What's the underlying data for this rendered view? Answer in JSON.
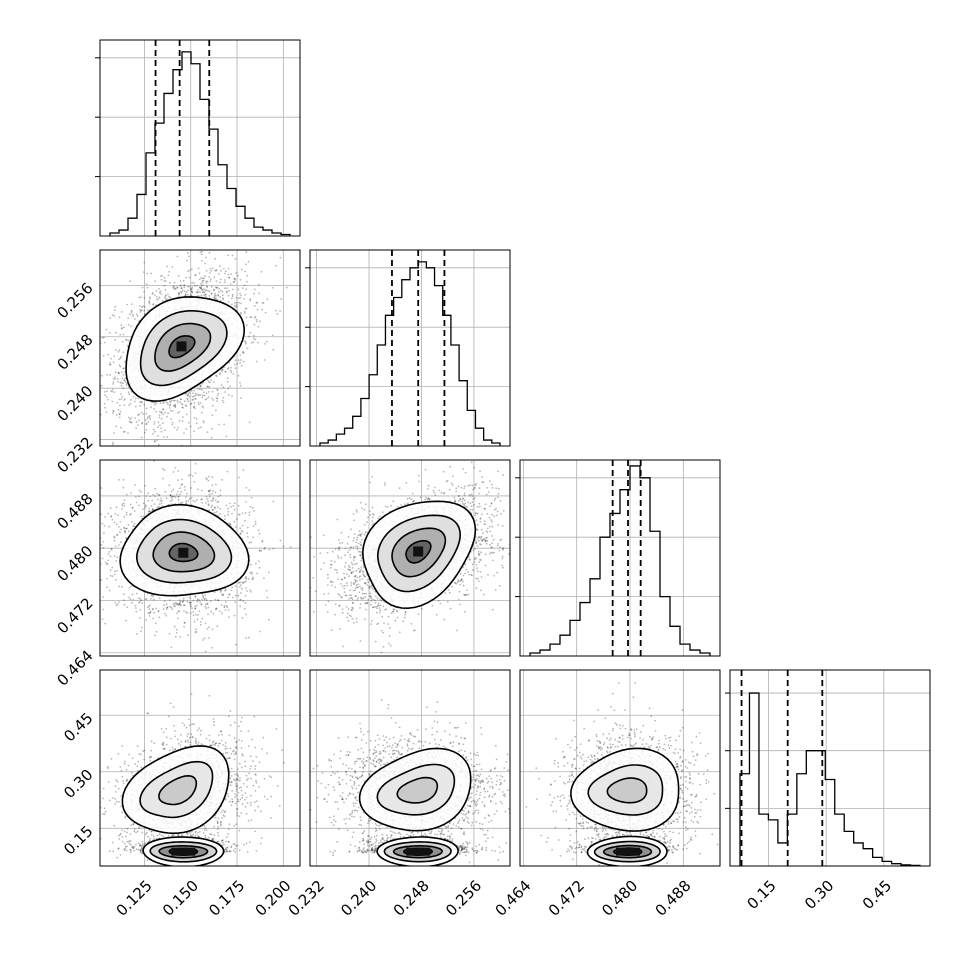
{
  "chart_data": {
    "type": "scatter",
    "parameters": [
      {
        "ticks": [
          0.125,
          0.15,
          0.175,
          0.2
        ],
        "tick_labels": [
          "0.125",
          "0.150",
          "0.175",
          "0.200"
        ],
        "range": [
          0.101,
          0.209
        ],
        "quantiles": [
          0.131,
          0.144,
          0.16
        ]
      },
      {
        "ticks": [
          0.232,
          0.24,
          0.248,
          0.256
        ],
        "tick_labels": [
          "0.232",
          "0.240",
          "0.248",
          "0.256"
        ],
        "range": [
          0.231,
          0.2615
        ],
        "quantiles": [
          0.2435,
          0.2475,
          0.2515
        ]
      },
      {
        "ticks": [
          0.464,
          0.472,
          0.48,
          0.488
        ],
        "tick_labels": [
          "0.464",
          "0.472",
          "0.480",
          "0.488"
        ],
        "range": [
          0.4635,
          0.4935
        ],
        "quantiles": [
          0.4774,
          0.4797,
          0.4816
        ]
      },
      {
        "ticks": [
          0.15,
          0.3,
          0.45
        ],
        "tick_labels": [
          "0.15",
          "0.30",
          "0.45"
        ],
        "range": [
          0.05,
          0.57
        ],
        "quantiles": [
          0.08,
          0.2,
          0.29
        ]
      }
    ],
    "histograms": [
      {
        "counts": [
          1,
          2,
          6,
          14,
          28,
          38,
          48,
          56,
          62,
          58,
          46,
          36,
          24,
          16,
          10,
          6,
          3,
          2,
          1,
          0.5
        ],
        "ylim": [
          0,
          66
        ]
      },
      {
        "counts": [
          1,
          2,
          4,
          6,
          10,
          16,
          24,
          34,
          44,
          50,
          56,
          60,
          62,
          60,
          54,
          44,
          34,
          22,
          12,
          6,
          2,
          1
        ],
        "ylim": [
          0,
          66
        ]
      },
      {
        "counts": [
          1,
          2,
          4,
          7,
          12,
          18,
          26,
          40,
          48,
          56,
          64,
          60,
          42,
          20,
          10,
          4,
          2,
          1
        ],
        "ylim": [
          0,
          66
        ]
      },
      {
        "counts": [
          16,
          30,
          9,
          8,
          4,
          9,
          16,
          20,
          20,
          15,
          9,
          6,
          4,
          3,
          1.5,
          0.8,
          0.4,
          0.2,
          0.1
        ],
        "ylim": [
          0,
          34
        ]
      }
    ],
    "pairs": [
      {
        "x": 0,
        "y": 1,
        "mean": [
          0.145,
          0.2465
        ],
        "sd": [
          0.0142,
          0.0048
        ],
        "rho": 0.35,
        "peak_level": "high"
      },
      {
        "x": 0,
        "y": 2,
        "mean": [
          0.146,
          0.4793
        ],
        "sd": [
          0.0142,
          0.0037
        ],
        "rho": -0.05,
        "peak_level": "high"
      },
      {
        "x": 1,
        "y": 2,
        "mean": [
          0.2475,
          0.4795
        ],
        "sd": [
          0.0048,
          0.0037
        ],
        "rho": 0.45,
        "peak_level": "high"
      },
      {
        "x": 0,
        "y": 3,
        "mean": [
          0.146,
          0.22
        ],
        "sd": [
          0.0142,
          0.12
        ],
        "rho": 0.2,
        "peak_level": "high"
      },
      {
        "x": 1,
        "y": 3,
        "mean": [
          0.2475,
          0.22
        ],
        "sd": [
          0.0048,
          0.12
        ],
        "rho": 0.0,
        "peak_level": "high"
      },
      {
        "x": 2,
        "y": 3,
        "mean": [
          0.4797,
          0.22
        ],
        "sd": [
          0.0037,
          0.12
        ],
        "rho": 0.0,
        "peak_level": "high"
      }
    ],
    "grid": true,
    "legend": false
  }
}
